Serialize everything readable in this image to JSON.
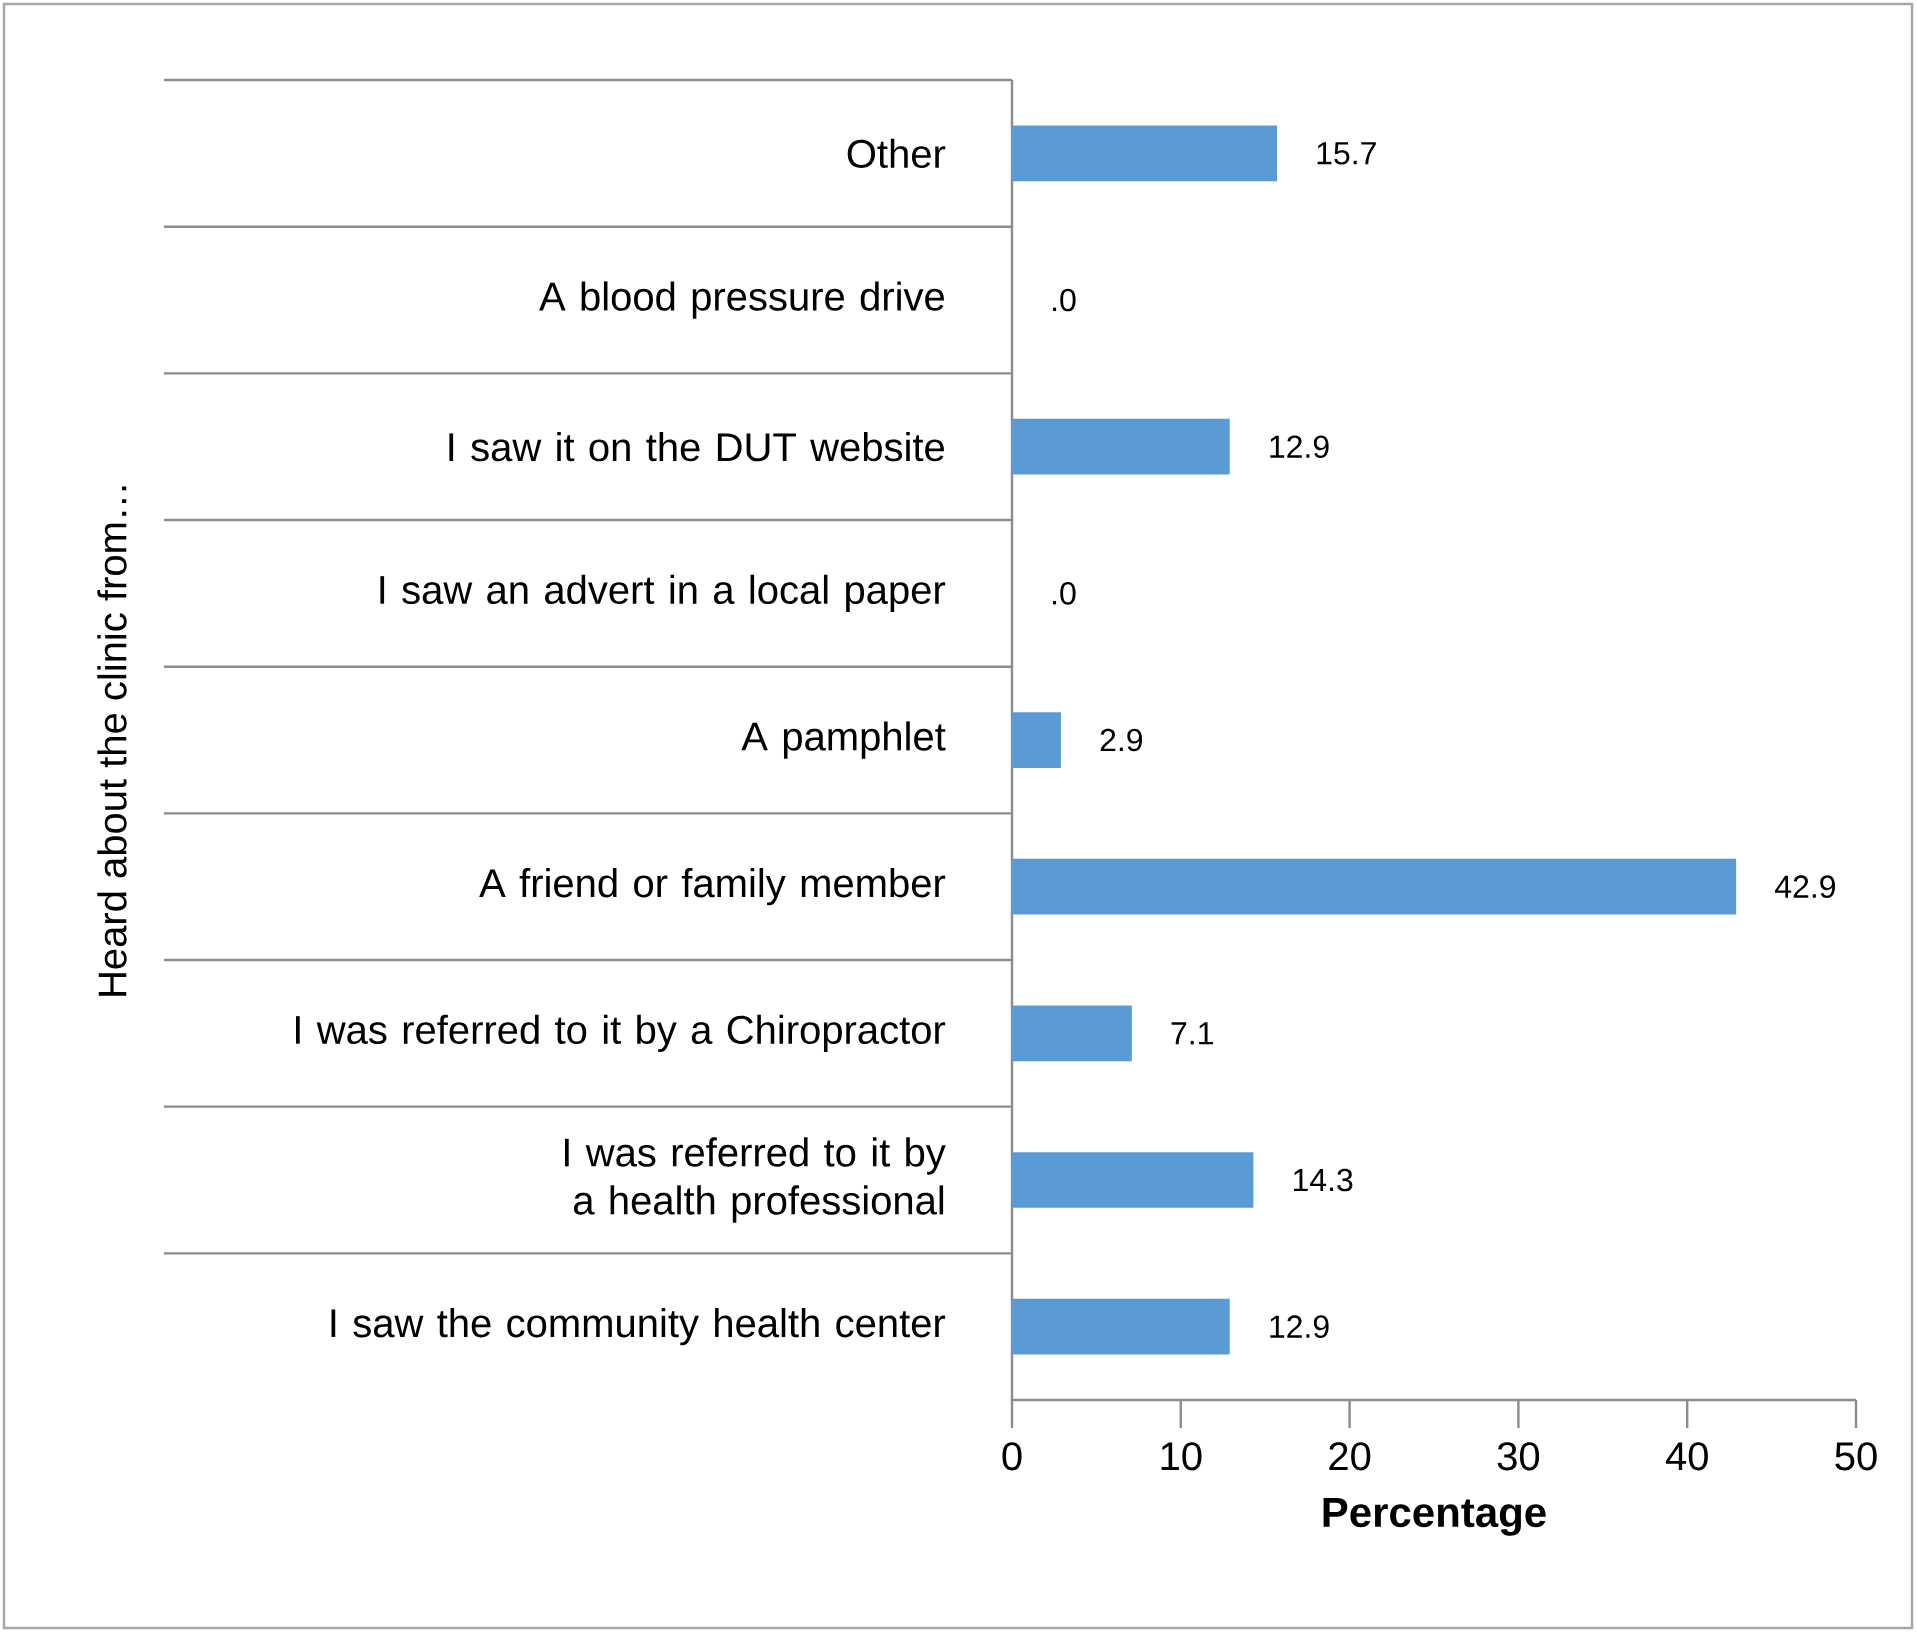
{
  "chart_data": {
    "type": "bar",
    "orientation": "horizontal",
    "ylabel": "Heard about the clinic from…",
    "xlabel": "Percentage",
    "categories": [
      "Other",
      "A blood pressure drive",
      "I saw it on the DUT website",
      "I saw an advert in a local paper",
      "A pamphlet",
      "A friend or family member",
      "I was referred to it by a Chiropractor",
      "I was referred to it by a health professional",
      "I saw the community health center"
    ],
    "values": [
      15.7,
      0,
      12.9,
      0,
      2.9,
      42.9,
      7.1,
      14.3,
      12.9
    ],
    "value_labels": [
      "15.7",
      ".0",
      "12.9",
      ".0",
      "2.9",
      "42.9",
      "7.1",
      "14.3",
      "12.9"
    ],
    "color": "#5b9bd5",
    "xlim": [
      0,
      50
    ],
    "xticks": [
      0,
      10,
      20,
      30,
      40,
      50
    ]
  }
}
